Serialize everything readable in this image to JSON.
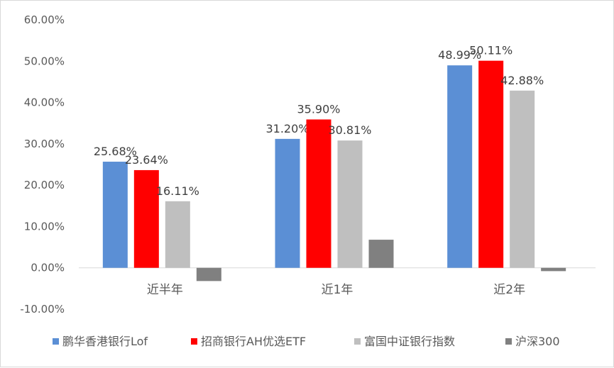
{
  "chart_data": {
    "type": "bar",
    "title": "",
    "xlabel": "",
    "ylabel": "",
    "categories": [
      "近半年",
      "近1年",
      "近2年"
    ],
    "y_ticks": [
      "60.00%",
      "50.00%",
      "40.00%",
      "30.00%",
      "20.00%",
      "10.00%",
      "0.00%",
      "-10.00%"
    ],
    "ylim": [
      -10,
      60
    ],
    "y_unit": "%",
    "grid": false,
    "legend_position": "bottom",
    "series": [
      {
        "name": "鹏华香港银行Lof",
        "color": "#5b8fd5",
        "values": [
          25.68,
          31.2,
          48.99
        ],
        "labels": [
          "25.68%",
          "31.20%",
          "48.99%"
        ]
      },
      {
        "name": "招商银行AH优选ETF",
        "color": "#ff0000",
        "values": [
          23.64,
          35.9,
          50.11
        ],
        "labels": [
          "23.64%",
          "35.90%",
          "50.11%"
        ]
      },
      {
        "name": "富国中证银行指数",
        "color": "#bfbfbf",
        "values": [
          16.11,
          30.81,
          42.88
        ],
        "labels": [
          "16.11%",
          "30.81%",
          "42.88%"
        ]
      },
      {
        "name": "沪深300",
        "color": "#808080",
        "values": [
          -3.2,
          6.8,
          -0.8
        ],
        "labels": [
          "",
          "",
          ""
        ]
      }
    ]
  }
}
